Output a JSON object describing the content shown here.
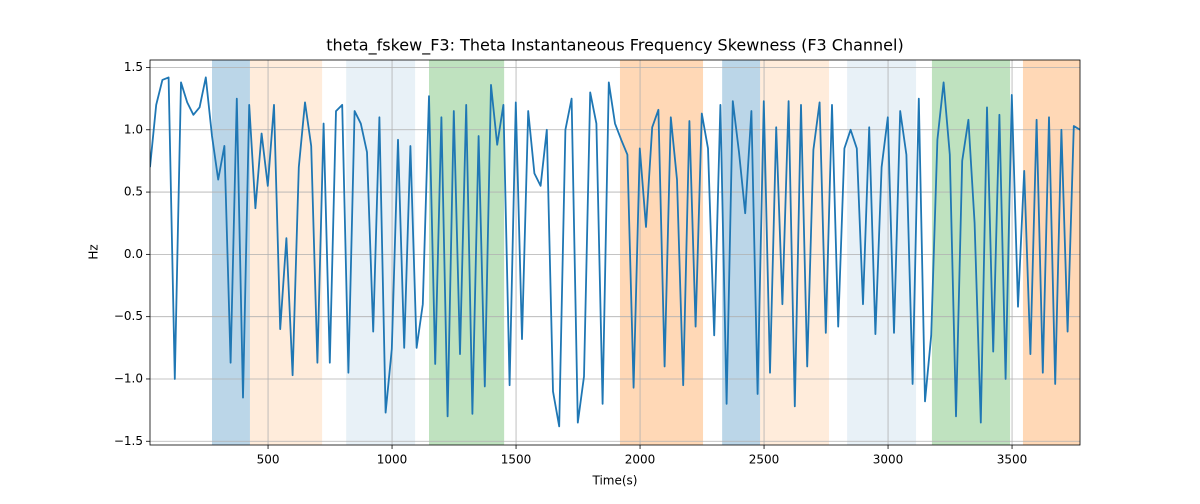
{
  "chart_data": {
    "type": "line",
    "title": "theta_fskew_F3: Theta Instantaneous Frequency Skewness (F3 Channel)",
    "xlabel": "Time(s)",
    "ylabel": "Hz",
    "x": [
      24,
      49,
      74,
      99,
      124,
      149,
      174,
      199,
      224,
      249,
      274,
      299,
      324,
      349,
      374,
      399,
      424,
      449,
      474,
      499,
      524,
      549,
      574,
      599,
      624,
      649,
      674,
      699,
      724,
      749,
      774,
      799,
      824,
      849,
      874,
      899,
      924,
      949,
      974,
      999,
      1024,
      1049,
      1074,
      1099,
      1124,
      1149,
      1174,
      1199,
      1224,
      1249,
      1274,
      1299,
      1324,
      1349,
      1374,
      1399,
      1424,
      1449,
      1474,
      1499,
      1524,
      1549,
      1574,
      1599,
      1624,
      1649,
      1674,
      1699,
      1724,
      1749,
      1774,
      1799,
      1824,
      1849,
      1874,
      1899,
      1924,
      1949,
      1974,
      1999,
      2024,
      2049,
      2074,
      2099,
      2124,
      2149,
      2174,
      2199,
      2224,
      2249,
      2274,
      2299,
      2324,
      2349,
      2374,
      2399,
      2424,
      2449,
      2474,
      2499,
      2524,
      2549,
      2574,
      2599,
      2624,
      2649,
      2674,
      2699,
      2724,
      2749,
      2774,
      2799,
      2824,
      2849,
      2874,
      2899,
      2924,
      2949,
      2974,
      2999,
      3024,
      3049,
      3074,
      3099,
      3124,
      3149,
      3174,
      3199,
      3224,
      3249,
      3274,
      3299,
      3324,
      3349,
      3374,
      3399,
      3424,
      3449,
      3474,
      3499,
      3524,
      3549,
      3574,
      3599,
      3624,
      3649,
      3674,
      3699,
      3724,
      3749,
      3774
    ],
    "values": [
      0.7,
      1.2,
      1.4,
      1.42,
      -1.0,
      1.38,
      1.22,
      1.12,
      1.18,
      1.42,
      0.95,
      0.6,
      0.87,
      -0.87,
      1.25,
      -1.15,
      1.2,
      0.37,
      0.97,
      0.55,
      1.2,
      -0.6,
      0.13,
      -0.97,
      0.7,
      1.22,
      0.87,
      -0.87,
      1.05,
      -0.87,
      1.15,
      1.2,
      -0.95,
      1.15,
      1.05,
      0.82,
      -0.62,
      1.1,
      -1.27,
      -0.76,
      0.92,
      -0.75,
      0.87,
      -0.75,
      -0.4,
      1.27,
      -0.88,
      1.1,
      -1.3,
      1.15,
      -0.8,
      1.2,
      -1.28,
      0.95,
      -1.06,
      1.36,
      0.88,
      1.2,
      -1.05,
      1.22,
      -0.68,
      1.15,
      0.65,
      0.55,
      1.0,
      -1.1,
      -1.38,
      1.0,
      1.25,
      -1.35,
      -0.98,
      1.3,
      1.05,
      -1.2,
      1.38,
      1.05,
      0.92,
      0.8,
      -1.07,
      0.85,
      0.22,
      1.02,
      1.16,
      -0.9,
      1.1,
      0.6,
      -1.05,
      1.07,
      -0.58,
      1.13,
      0.85,
      -0.65,
      1.2,
      -1.2,
      1.23,
      0.82,
      0.33,
      1.15,
      -1.12,
      1.23,
      -0.95,
      1.02,
      -0.4,
      1.23,
      -1.22,
      1.2,
      -0.9,
      0.84,
      1.22,
      -0.63,
      1.2,
      -0.58,
      0.85,
      1.0,
      0.85,
      -0.4,
      1.02,
      -0.64,
      0.7,
      1.1,
      -0.63,
      1.15,
      0.8,
      -1.04,
      1.25,
      -1.18,
      -0.65,
      0.92,
      1.38,
      0.8,
      -1.3,
      0.75,
      1.08,
      0.25,
      -1.35,
      1.18,
      -0.78,
      1.12,
      -1.0,
      1.28,
      -0.42,
      0.67,
      -0.8,
      1.08,
      -0.95,
      1.1,
      -1.04,
      1.0,
      -0.62,
      1.03,
      1.0
    ],
    "color": "#1f77b4",
    "spans": [
      {
        "start": 274,
        "end": 427,
        "color": "#1f77b4",
        "alpha": 0.3
      },
      {
        "start": 427,
        "end": 718,
        "color": "#ff7f0e",
        "alpha": 0.15
      },
      {
        "start": 815,
        "end": 1093,
        "color": "#1f77b4",
        "alpha": 0.1
      },
      {
        "start": 1149,
        "end": 1452,
        "color": "#2ca02c",
        "alpha": 0.3
      },
      {
        "start": 1919,
        "end": 2254,
        "color": "#ff7f0e",
        "alpha": 0.3
      },
      {
        "start": 2331,
        "end": 2484,
        "color": "#1f77b4",
        "alpha": 0.3
      },
      {
        "start": 2484,
        "end": 2762,
        "color": "#ff7f0e",
        "alpha": 0.15
      },
      {
        "start": 2835,
        "end": 3113,
        "color": "#1f77b4",
        "alpha": 0.1
      },
      {
        "start": 3177,
        "end": 3492,
        "color": "#2ca02c",
        "alpha": 0.3
      },
      {
        "start": 3544,
        "end": 3774,
        "color": "#ff7f0e",
        "alpha": 0.3
      }
    ],
    "xlim": [
      24,
      3774
    ],
    "ylim": [
      -1.53,
      1.56
    ],
    "xticks": [
      500,
      1000,
      1500,
      2000,
      2500,
      3000,
      3500
    ],
    "yticks": [
      {
        "value": -1.5,
        "label": "−1.5"
      },
      {
        "value": -1,
        "label": "−1.0"
      },
      {
        "value": -0.5,
        "label": "−0.5"
      },
      {
        "value": 0,
        "label": "0.0"
      },
      0.5,
      {
        "value": 1,
        "label": "1.0"
      },
      1.5
    ],
    "grid": true
  }
}
